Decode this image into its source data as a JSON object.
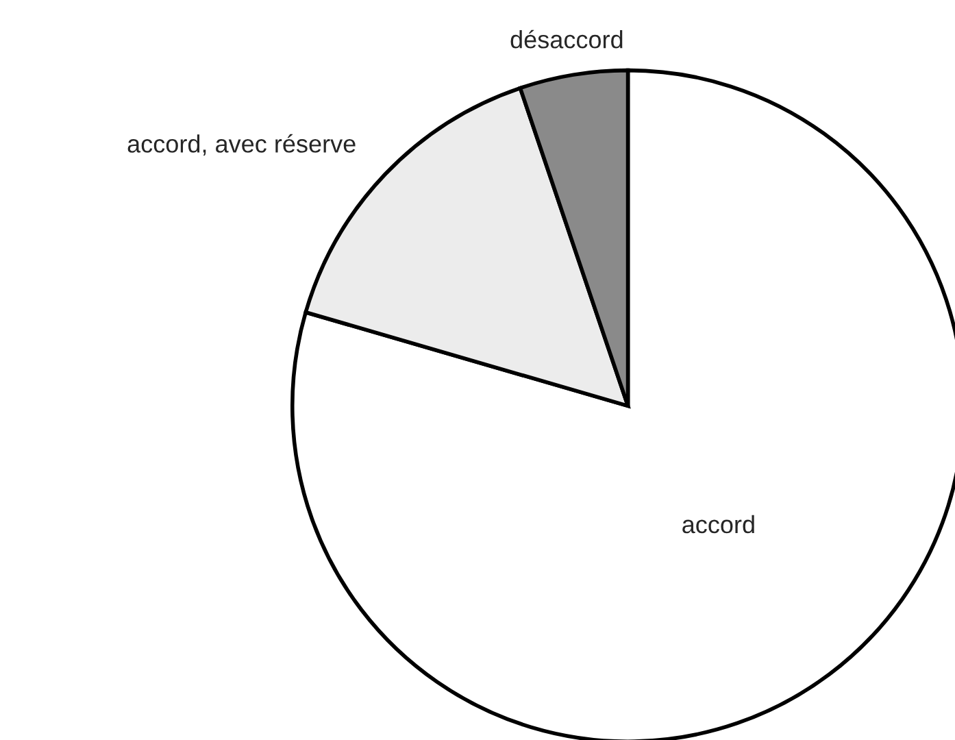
{
  "chart_data": {
    "type": "pie",
    "categories": [
      "accord",
      "accord, avec réserve",
      "désaccord"
    ],
    "values": [
      79.5,
      15.3,
      5.2
    ],
    "colors": [
      "#ffffff",
      "#ececec",
      "#8a8a8a"
    ],
    "legend": false
  }
}
